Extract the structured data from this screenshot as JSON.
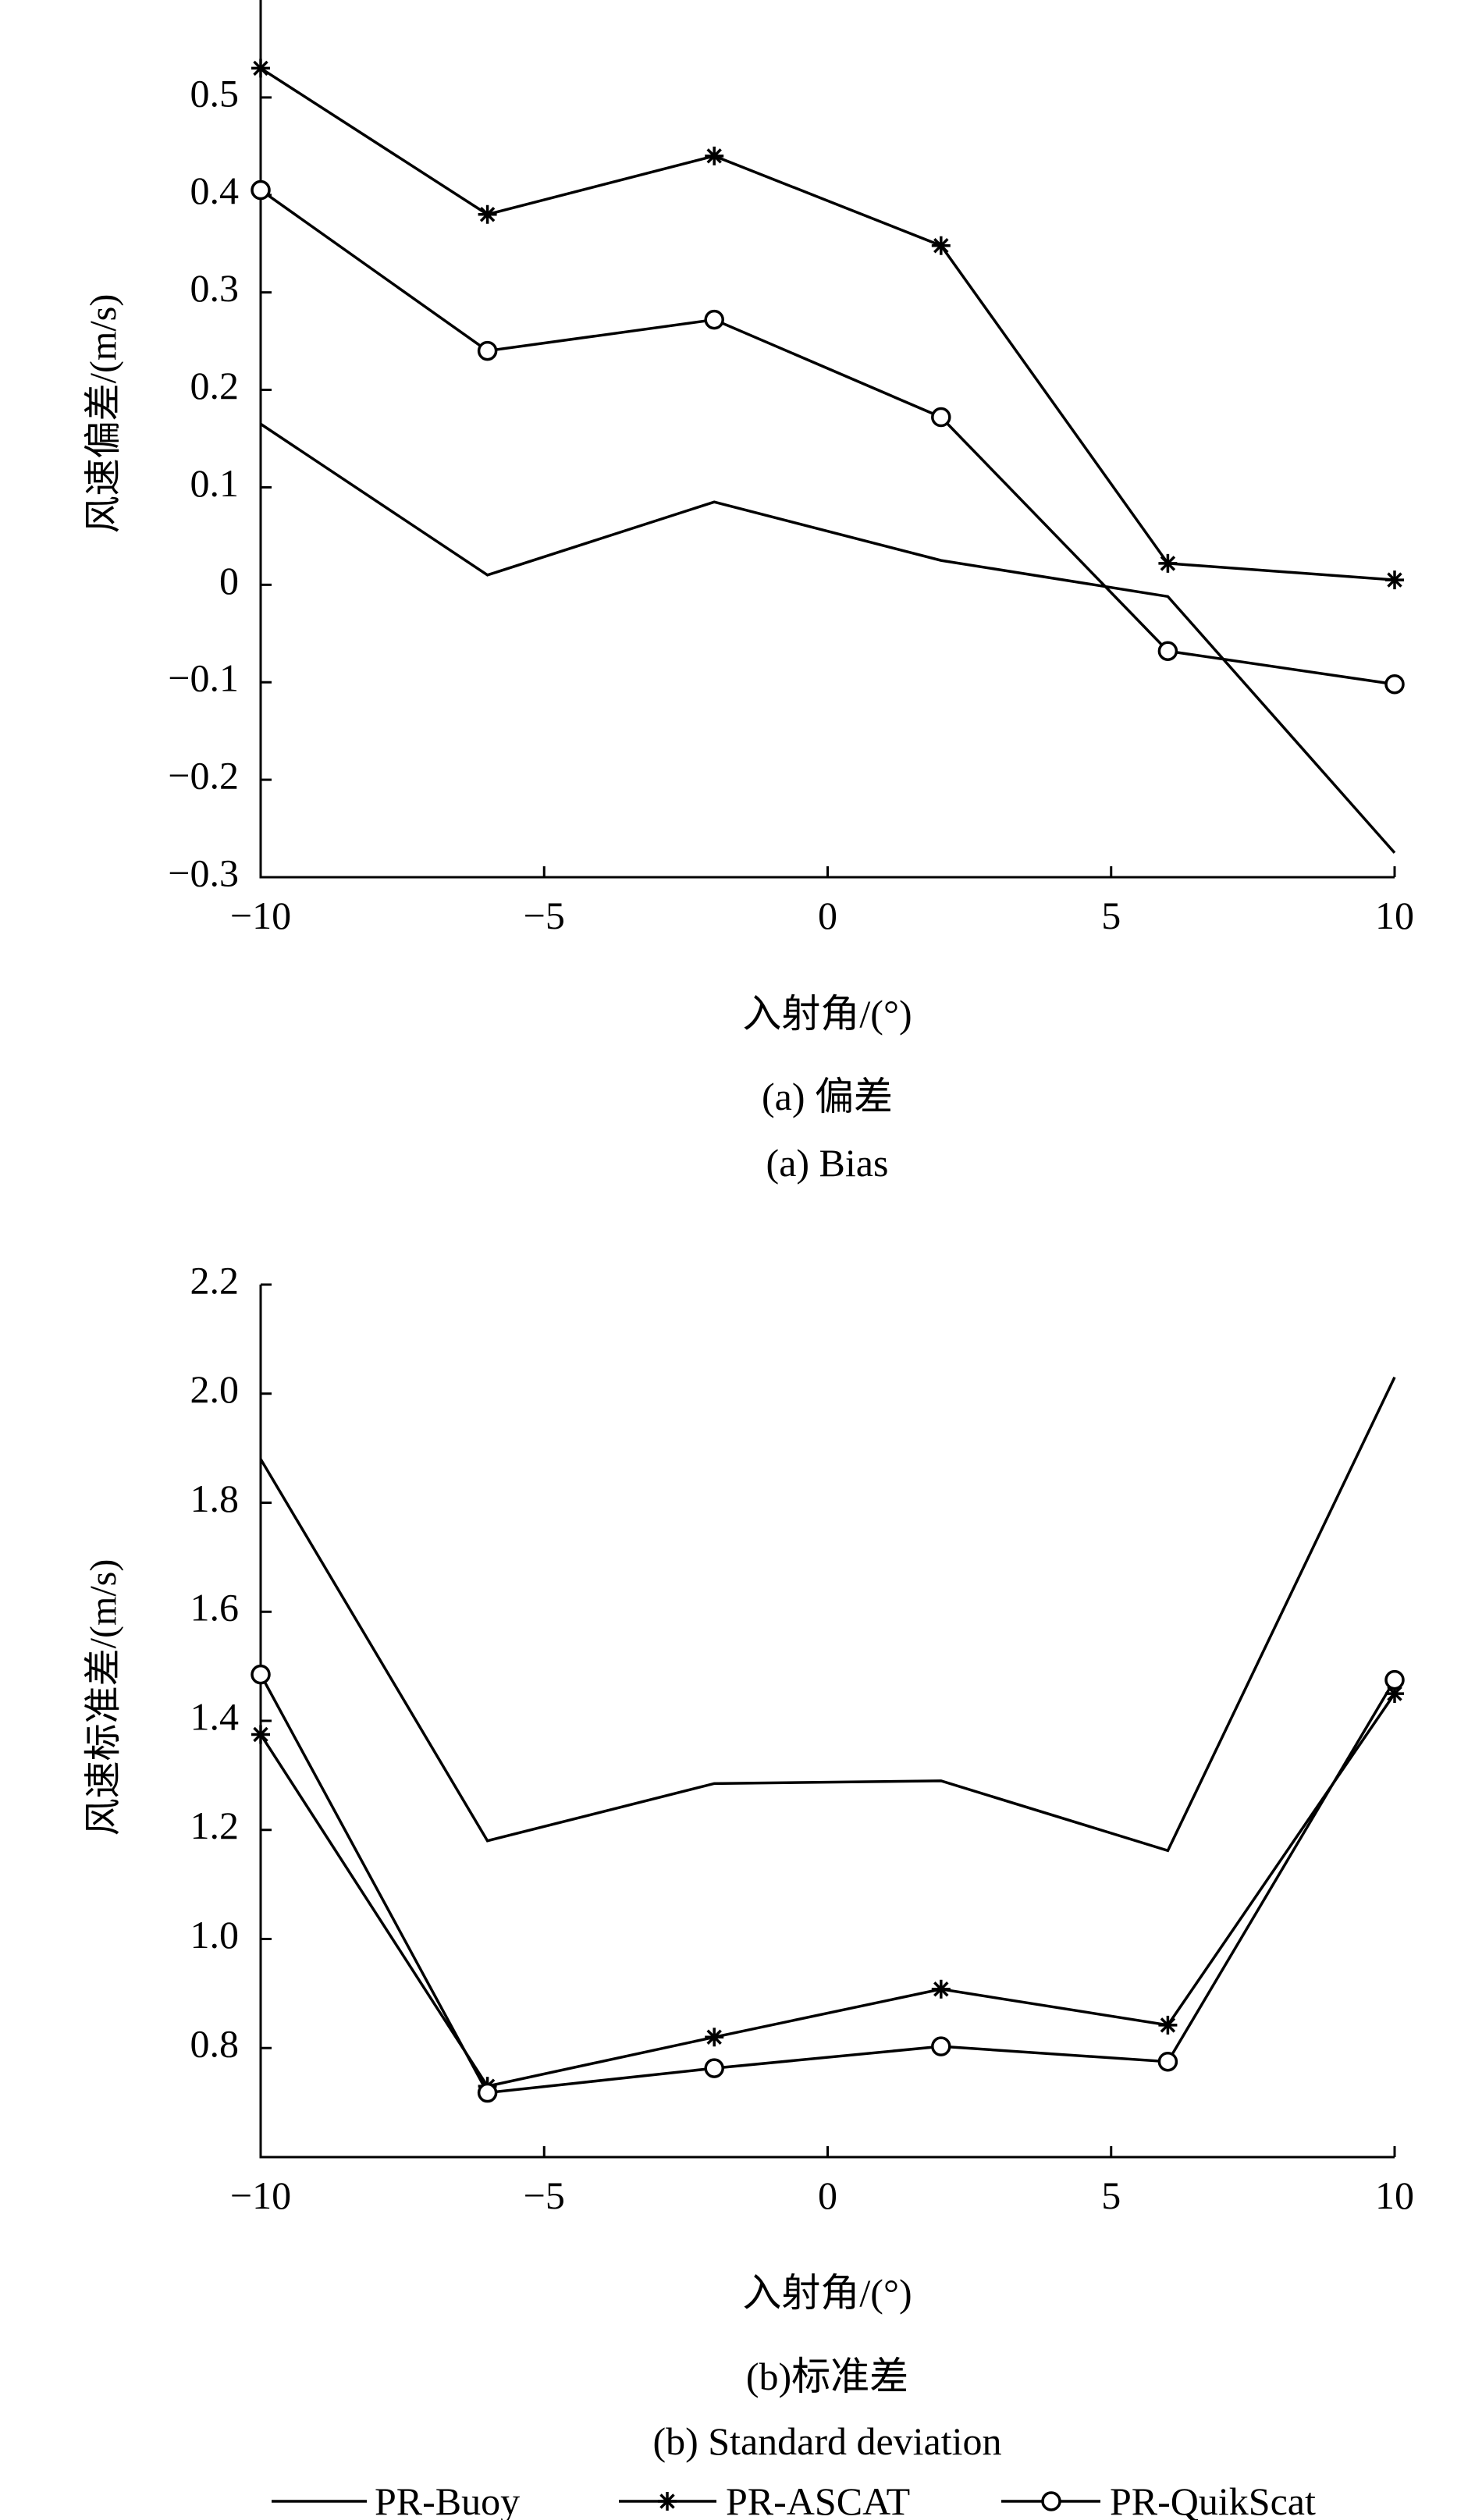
{
  "chart_data": [
    {
      "type": "line",
      "x": [
        -10,
        -6,
        -2,
        2,
        6,
        10
      ],
      "xlim": [
        -10,
        10
      ],
      "ylim": [
        -0.3,
        0.6
      ],
      "xticks": [
        "−10",
        "−5",
        "0",
        "5",
        "10"
      ],
      "yticks": [
        "−0.3",
        "−0.2",
        "−0.1",
        "0",
        "0.1",
        "0.2",
        "0.3",
        "0.4",
        "0.5"
      ],
      "xlabel": "入射角/(°)",
      "ylabel": "风速偏差/(m/s)",
      "caption_cn": "(a) 偏差",
      "caption_en": "(a) Bias",
      "series": [
        {
          "name": "PR-Buoy",
          "marker": "none",
          "values": [
            0.165,
            0.01,
            0.085,
            0.025,
            -0.012,
            -0.275
          ]
        },
        {
          "name": "PR-ASCAT",
          "marker": "star",
          "values": [
            0.53,
            0.38,
            0.44,
            0.348,
            0.022,
            0.005
          ]
        },
        {
          "name": "PR-QuikScat",
          "marker": "circle",
          "values": [
            0.405,
            0.24,
            0.272,
            0.172,
            -0.068,
            -0.102
          ]
        }
      ]
    },
    {
      "type": "line",
      "x": [
        -10,
        -6,
        -2,
        2,
        6,
        10
      ],
      "xlim": [
        -10,
        10
      ],
      "ylim": [
        0.6,
        2.2
      ],
      "xticks": [
        "−10",
        "−5",
        "0",
        "5",
        "10"
      ],
      "yticks": [
        "0.8",
        "1.0",
        "1.2",
        "1.4",
        "1.6",
        "1.8",
        "2.0",
        "2.2"
      ],
      "xlabel": "入射角/(°)",
      "ylabel": "风速标准差/(m/s)",
      "caption_cn": "(b)标准差",
      "caption_en": "(b) Standard deviation",
      "series": [
        {
          "name": "PR-Buoy",
          "marker": "none",
          "values": [
            1.88,
            1.18,
            1.285,
            1.29,
            1.162,
            2.03
          ]
        },
        {
          "name": "PR-ASCAT",
          "marker": "star",
          "values": [
            1.375,
            0.73,
            0.82,
            0.908,
            0.842,
            1.45
          ]
        },
        {
          "name": "PR-QuikScat",
          "marker": "circle",
          "values": [
            1.485,
            0.718,
            0.763,
            0.803,
            0.775,
            1.475
          ]
        }
      ]
    }
  ],
  "legend": [
    {
      "name": "PR-Buoy",
      "marker": "none"
    },
    {
      "name": "PR-ASCAT",
      "marker": "star"
    },
    {
      "name": "PR-QuikScat",
      "marker": "circle"
    }
  ]
}
